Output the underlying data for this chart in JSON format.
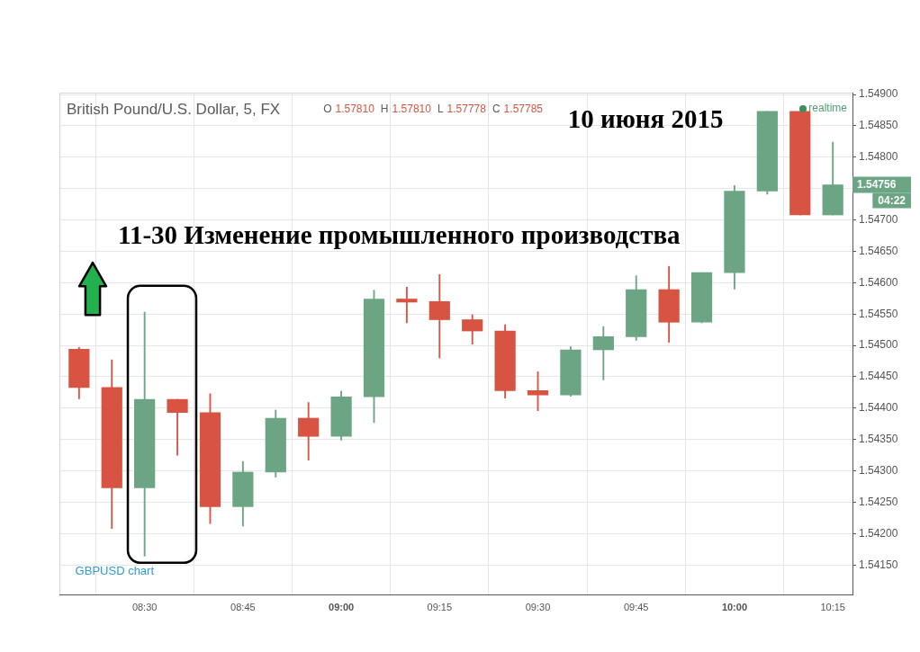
{
  "chart_data": {
    "type": "candlestick",
    "title": "British Pound/U.S. Dollar, 5, FX",
    "subtitle": "O 1.57810 H 1.57810 L 1.57778 C 1.57785",
    "annotations": [
      "10 июня 2015",
      "11-30 Изменение промышленного производства",
      "realtime",
      "GBPUSD chart",
      "1.54756",
      "04:22"
    ],
    "x": [
      "2015-06-10T08:20",
      "2015-06-10T08:25",
      "2015-06-10T08:30",
      "2015-06-10T08:35",
      "2015-06-10T08:40",
      "2015-06-10T08:45",
      "2015-06-10T08:50",
      "2015-06-10T08:55",
      "2015-06-10T09:00",
      "2015-06-10T09:05",
      "2015-06-10T09:10",
      "2015-06-10T09:15",
      "2015-06-10T09:20",
      "2015-06-10T09:25",
      "2015-06-10T09:30",
      "2015-06-10T09:35",
      "2015-06-10T09:40",
      "2015-06-10T09:45",
      "2015-06-10T09:50",
      "2015-06-10T09:55",
      "2015-06-10T10:00",
      "2015-06-10T10:05",
      "2015-06-10T10:10",
      "2015-06-10T10:15"
    ],
    "ohlc": [
      [
        1.54494,
        1.54497,
        1.54415,
        1.54433
      ],
      [
        1.54433,
        1.54477,
        1.54208,
        1.54273
      ],
      [
        1.54273,
        1.54553,
        1.54164,
        1.54414
      ],
      [
        1.54414,
        1.54414,
        1.54325,
        1.54393
      ],
      [
        1.54393,
        1.54423,
        1.54216,
        1.54243
      ],
      [
        1.54243,
        1.54315,
        1.54212,
        1.54298
      ],
      [
        1.54298,
        1.54397,
        1.5429,
        1.54384
      ],
      [
        1.54384,
        1.54409,
        1.54317,
        1.54355
      ],
      [
        1.54355,
        1.54427,
        1.54349,
        1.54418
      ],
      [
        1.54418,
        1.54588,
        1.54377,
        1.54574
      ],
      [
        1.54574,
        1.54593,
        1.54536,
        1.54569
      ],
      [
        1.5457,
        1.54613,
        1.5448,
        1.54541
      ],
      [
        1.54541,
        1.54549,
        1.54502,
        1.54523
      ],
      [
        1.54523,
        1.54533,
        1.54416,
        1.54428
      ],
      [
        1.54428,
        1.54458,
        1.54396,
        1.54421
      ],
      [
        1.54421,
        1.54498,
        1.54419,
        1.54493
      ],
      [
        1.54493,
        1.5453,
        1.54445,
        1.54514
      ],
      [
        1.54514,
        1.54611,
        1.54508,
        1.54589
      ],
      [
        1.54589,
        1.54626,
        1.54505,
        1.54537
      ],
      [
        1.54537,
        1.54616,
        1.54536,
        1.54616
      ],
      [
        1.54616,
        1.54755,
        1.5459,
        1.54746
      ],
      [
        1.54746,
        1.54873,
        1.54741,
        1.54873
      ],
      [
        1.54873,
        1.54873,
        1.54708,
        1.54708
      ],
      [
        1.54708,
        1.54824,
        1.54708,
        1.54756
      ]
    ],
    "colors": [
      "#d75442",
      "#d75442",
      "#6ba583",
      "#d75442",
      "#d75442",
      "#6ba583",
      "#6ba583",
      "#d75442",
      "#6ba583",
      "#6ba583",
      "#d75442",
      "#d75442",
      "#d75442",
      "#d75442",
      "#d75442",
      "#6ba583",
      "#6ba583",
      "#6ba583",
      "#d75442",
      "#6ba583",
      "#6ba583",
      "#6ba583",
      "#d75442",
      "#6ba583"
    ],
    "xlim": [
      "2015-06-10T08:17",
      "2015-06-10T10:18"
    ],
    "xticks": [
      {
        "value": "2015-06-10T08:30",
        "label": "08:30"
      },
      {
        "value": "2015-06-10T08:45",
        "label": "08:45"
      },
      {
        "value": "2015-06-10T09:00",
        "label": "09:00"
      },
      {
        "value": "2015-06-10T09:15",
        "label": "09:15"
      },
      {
        "value": "2015-06-10T09:30",
        "label": "09:30"
      },
      {
        "value": "2015-06-10T09:45",
        "label": "09:45"
      },
      {
        "value": "2015-06-10T10:00",
        "label": "10:00"
      },
      {
        "value": "2015-06-10T10:15",
        "label": "10:15"
      }
    ],
    "ylim": [
      1.54103,
      1.54903
    ],
    "yticks": [
      {
        "value": 1.5415,
        "label": "1.54150"
      },
      {
        "value": 1.542,
        "label": "1.54200"
      },
      {
        "value": 1.5425,
        "label": "1.54250"
      },
      {
        "value": 1.543,
        "label": "1.54300"
      },
      {
        "value": 1.5435,
        "label": "1.54350"
      },
      {
        "value": 1.544,
        "label": "1.54400"
      },
      {
        "value": 1.5445,
        "label": "1.54450"
      },
      {
        "value": 1.545,
        "label": "1.54500"
      },
      {
        "value": 1.5455,
        "label": "1.54550"
      },
      {
        "value": 1.546,
        "label": "1.54600"
      },
      {
        "value": 1.5465,
        "label": "1.54650"
      },
      {
        "value": 1.547,
        "label": "1.54700"
      },
      {
        "value": 1.5475,
        "label": null
      },
      {
        "value": 1.548,
        "label": "1.54800"
      },
      {
        "value": 1.5485,
        "label": "1.54850"
      },
      {
        "value": 1.549,
        "label": "1.54900"
      }
    ],
    "grid": true
  }
}
